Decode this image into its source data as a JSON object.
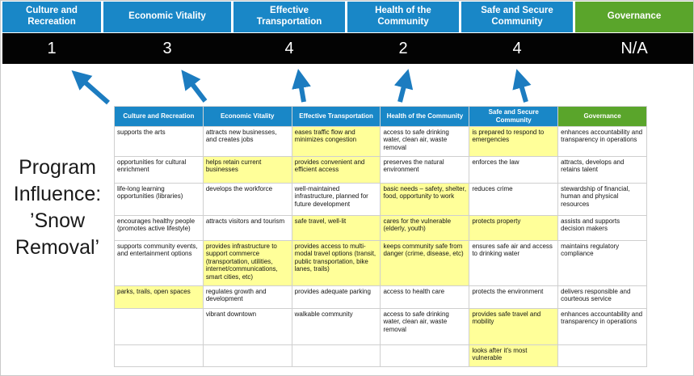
{
  "slide": {
    "title_lines": [
      "Program",
      "Influence:",
      "’Snow",
      "Removal’"
    ]
  },
  "colors": {
    "pillar_blue": "#1987C7",
    "pillar_green": "#5AA52B",
    "score_band_bg": "#030303",
    "highlight_yellow": "#FFFF99",
    "arrow_blue": "#1C7CC0"
  },
  "pillars": [
    {
      "label": "Culture and Recreation",
      "score": "1",
      "color": "blue"
    },
    {
      "label": "Economic Vitality",
      "score": "3",
      "color": "blue"
    },
    {
      "label": "Effective Transportation",
      "score": "4",
      "color": "blue"
    },
    {
      "label": "Health of the Community",
      "score": "2",
      "color": "blue"
    },
    {
      "label": "Safe and Secure Community",
      "score": "4",
      "color": "blue"
    },
    {
      "label": "Governance",
      "score": "N/A",
      "color": "green"
    }
  ],
  "table": {
    "headers": [
      {
        "label": "Culture and Recreation",
        "color": "blue"
      },
      {
        "label": "Economic Vitality",
        "color": "blue"
      },
      {
        "label": "Effective Transportation",
        "color": "blue"
      },
      {
        "label": "Health of the Community",
        "color": "blue"
      },
      {
        "label": "Safe and Secure Community",
        "color": "blue"
      },
      {
        "label": "Governance",
        "color": "green"
      }
    ],
    "rows": [
      [
        {
          "text": "supports the arts",
          "hl": false
        },
        {
          "text": "attracts new businesses, and creates jobs",
          "hl": false
        },
        {
          "text": "eases traffic flow and minimizes congestion",
          "hl": true
        },
        {
          "text": "access to safe drinking water, clean air, waste removal",
          "hl": false
        },
        {
          "text": "is prepared to respond to emergencies",
          "hl": true
        },
        {
          "text": "enhances accountability and transparency in operations",
          "hl": false
        }
      ],
      [
        {
          "text": "opportunities for cultural enrichment",
          "hl": false
        },
        {
          "text": "helps retain current businesses",
          "hl": true
        },
        {
          "text": "provides convenient and efficient access",
          "hl": true
        },
        {
          "text": "preserves the natural environment",
          "hl": false
        },
        {
          "text": "enforces the law",
          "hl": false
        },
        {
          "text": "attracts, develops and retains talent",
          "hl": false
        }
      ],
      [
        {
          "text": "life-long learning opportunities (libraries)",
          "hl": false
        },
        {
          "text": "develops the workforce",
          "hl": false
        },
        {
          "text": "well-maintained infrastructure, planned for future development",
          "hl": false
        },
        {
          "text": "basic needs – safety, shelter, food, opportunity to work",
          "hl": true
        },
        {
          "text": "reduces crime",
          "hl": false
        },
        {
          "text": "stewardship of financial, human and physical resources",
          "hl": false
        }
      ],
      [
        {
          "text": "encourages healthy people (promotes active lifestyle)",
          "hl": false
        },
        {
          "text": "attracts visitors and tourism",
          "hl": false
        },
        {
          "text": "safe travel, well-lit",
          "hl": true
        },
        {
          "text": "cares for the vulnerable (elderly, youth)",
          "hl": true
        },
        {
          "text": "protects property",
          "hl": true
        },
        {
          "text": "assists and supports decision makers",
          "hl": false
        }
      ],
      [
        {
          "text": "supports community events, and entertainment options",
          "hl": false
        },
        {
          "text": "provides infrastructure to support commerce (transportation, utilities, internet/communications, smart cities, etc)",
          "hl": true
        },
        {
          "text": "provides access to multi-modal travel options (transit, public transportation, bike lanes, trails)",
          "hl": true
        },
        {
          "text": "keeps community safe from danger (crime, disease, etc)",
          "hl": true
        },
        {
          "text": "ensures safe air and access to drinking water",
          "hl": false
        },
        {
          "text": "maintains regulatory compliance",
          "hl": false
        }
      ],
      [
        {
          "text": "parks, trails, open spaces",
          "hl": true
        },
        {
          "text": "regulates growth and development",
          "hl": false
        },
        {
          "text": "provides adequate parking",
          "hl": false
        },
        {
          "text": "access to health care",
          "hl": false
        },
        {
          "text": "protects the environment",
          "hl": false
        },
        {
          "text": "delivers responsible and courteous service",
          "hl": false
        }
      ],
      [
        {
          "text": "",
          "hl": false
        },
        {
          "text": "vibrant downtown",
          "hl": false
        },
        {
          "text": "walkable community",
          "hl": false
        },
        {
          "text": "access to safe drinking water, clean air, waste removal",
          "hl": false
        },
        {
          "text": "provides safe travel and mobility",
          "hl": true
        },
        {
          "text": "enhances accountability and transparency in operations",
          "hl": false
        }
      ],
      [
        {
          "text": "",
          "hl": false
        },
        {
          "text": "",
          "hl": false
        },
        {
          "text": "",
          "hl": false
        },
        {
          "text": "",
          "hl": false
        },
        {
          "text": "looks after it's most vulnerable",
          "hl": true
        },
        {
          "text": "",
          "hl": false
        }
      ]
    ]
  }
}
